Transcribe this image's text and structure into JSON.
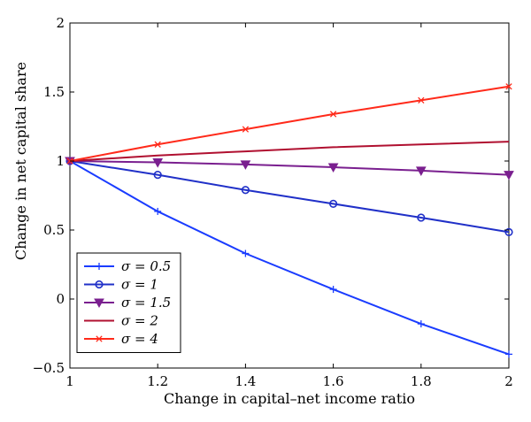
{
  "chart_data": {
    "type": "line",
    "xlabel": "Change in capital–net income ratio",
    "ylabel": "Change in net capital share",
    "xlim": [
      1,
      2
    ],
    "ylim": [
      -0.5,
      2
    ],
    "xticks": [
      1,
      1.2,
      1.4,
      1.6,
      1.8,
      2
    ],
    "xtick_labels": [
      "1",
      "1.2",
      "1.4",
      "1.6",
      "1.8",
      "2"
    ],
    "yticks": [
      -0.5,
      0,
      0.5,
      1,
      1.5,
      2
    ],
    "ytick_labels": [
      "−0.5",
      "0",
      "0.5",
      "1",
      "1.5",
      "2"
    ],
    "grid": false,
    "legend_position": "bottom-left",
    "x": [
      1,
      1.2,
      1.4,
      1.6,
      1.8,
      2
    ],
    "series": [
      {
        "name": "σ = 0.5",
        "values": [
          1.0,
          0.635,
          0.33,
          0.07,
          -0.18,
          -0.4
        ],
        "color": "#1a3cff",
        "marker": "plus"
      },
      {
        "name": "σ = 1",
        "values": [
          1.0,
          0.9,
          0.79,
          0.69,
          0.59,
          0.485
        ],
        "color": "#2030c8",
        "marker": "circle"
      },
      {
        "name": "σ = 1.5",
        "values": [
          1.0,
          0.99,
          0.975,
          0.955,
          0.93,
          0.9
        ],
        "color": "#7a1f8f",
        "marker": "triangle-down"
      },
      {
        "name": "σ = 2",
        "values": [
          1.0,
          1.04,
          1.07,
          1.1,
          1.12,
          1.14
        ],
        "color": "#b01030",
        "marker": "none"
      },
      {
        "name": "σ = 4",
        "values": [
          1.0,
          1.12,
          1.23,
          1.34,
          1.44,
          1.54
        ],
        "color": "#ff2a1a",
        "marker": "x"
      }
    ]
  }
}
